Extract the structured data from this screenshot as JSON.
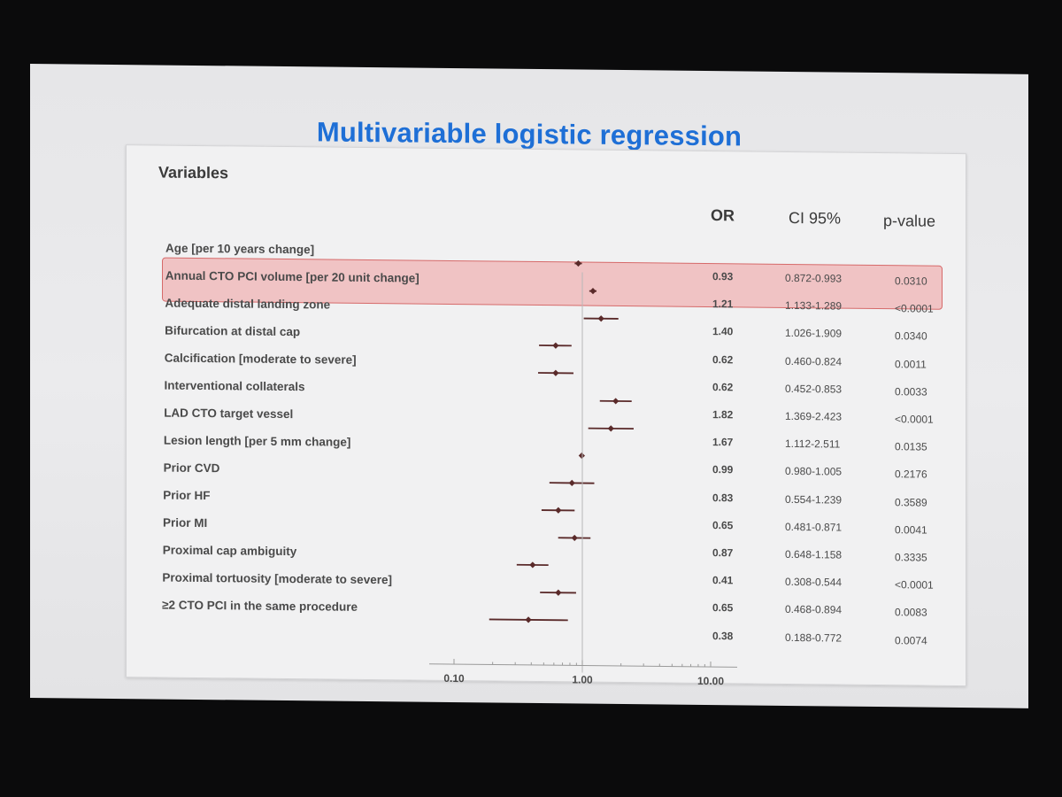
{
  "slide_title": "Multivariable logistic regression",
  "headers": {
    "variables": "Variables",
    "or": "OR",
    "ci": "CI 95%",
    "pvalue": "p-value"
  },
  "highlight_color": "#f08c8c",
  "marker_color": "#5a2a2a",
  "chart_data": {
    "type": "forest",
    "x_scale": "log",
    "xlim": [
      0.1,
      10
    ],
    "reference_line": 1.0,
    "tick_labels": [
      "0.10",
      "1.00",
      "10.00"
    ],
    "highlighted_row": 1,
    "rows": [
      {
        "label": "Age [per 10 years change]",
        "or": 0.93,
        "ci_low": 0.872,
        "ci_high": 0.993,
        "or_text": "0.93",
        "ci_text": "0.872-0.993",
        "p_text": "0.0310"
      },
      {
        "label": "Annual CTO PCI volume [per 20 unit change]",
        "or": 1.21,
        "ci_low": 1.133,
        "ci_high": 1.289,
        "or_text": "1.21",
        "ci_text": "1.133-1.289",
        "p_text": "<0.0001"
      },
      {
        "label": "Adequate distal landing zone",
        "or": 1.4,
        "ci_low": 1.026,
        "ci_high": 1.909,
        "or_text": "1.40",
        "ci_text": "1.026-1.909",
        "p_text": "0.0340"
      },
      {
        "label": "Bifurcation at distal cap",
        "or": 0.62,
        "ci_low": 0.46,
        "ci_high": 0.824,
        "or_text": "0.62",
        "ci_text": "0.460-0.824",
        "p_text": "0.0011"
      },
      {
        "label": "Calcification [moderate to severe]",
        "or": 0.62,
        "ci_low": 0.452,
        "ci_high": 0.853,
        "or_text": "0.62",
        "ci_text": "0.452-0.853",
        "p_text": "0.0033"
      },
      {
        "label": "Interventional collaterals",
        "or": 1.82,
        "ci_low": 1.369,
        "ci_high": 2.423,
        "or_text": "1.82",
        "ci_text": "1.369-2.423",
        "p_text": "<0.0001"
      },
      {
        "label": "LAD CTO target vessel",
        "or": 1.67,
        "ci_low": 1.112,
        "ci_high": 2.511,
        "or_text": "1.67",
        "ci_text": "1.112-2.511",
        "p_text": "0.0135"
      },
      {
        "label": "Lesion length [per 5 mm change]",
        "or": 0.99,
        "ci_low": 0.98,
        "ci_high": 1.005,
        "or_text": "0.99",
        "ci_text": "0.980-1.005",
        "p_text": "0.2176"
      },
      {
        "label": "Prior CVD",
        "or": 0.83,
        "ci_low": 0.554,
        "ci_high": 1.239,
        "or_text": "0.83",
        "ci_text": "0.554-1.239",
        "p_text": "0.3589"
      },
      {
        "label": "Prior HF",
        "or": 0.65,
        "ci_low": 0.481,
        "ci_high": 0.871,
        "or_text": "0.65",
        "ci_text": "0.481-0.871",
        "p_text": "0.0041"
      },
      {
        "label": "Prior MI",
        "or": 0.87,
        "ci_low": 0.648,
        "ci_high": 1.158,
        "or_text": "0.87",
        "ci_text": "0.648-1.158",
        "p_text": "0.3335"
      },
      {
        "label": "Proximal cap ambiguity",
        "or": 0.41,
        "ci_low": 0.308,
        "ci_high": 0.544,
        "or_text": "0.41",
        "ci_text": "0.308-0.544",
        "p_text": "<0.0001"
      },
      {
        "label": "Proximal tortuosity [moderate to severe]",
        "or": 0.65,
        "ci_low": 0.468,
        "ci_high": 0.894,
        "or_text": "0.65",
        "ci_text": "0.468-0.894",
        "p_text": "0.0083"
      },
      {
        "label": "≥2 CTO PCI in the same procedure",
        "or": 0.38,
        "ci_low": 0.188,
        "ci_high": 0.772,
        "or_text": "0.38",
        "ci_text": "0.188-0.772",
        "p_text": "0.0074"
      }
    ]
  }
}
